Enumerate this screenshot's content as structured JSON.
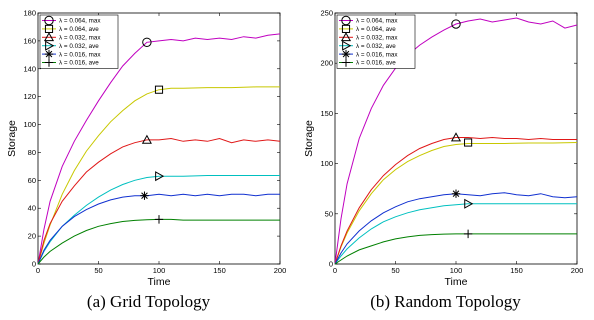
{
  "chart_data": [
    {
      "type": "line",
      "caption": "(a) Grid Topology",
      "xlabel": "Time",
      "ylabel": "Storage",
      "xlim": [
        0,
        200
      ],
      "ylim": [
        0,
        180
      ],
      "xticks": [
        0,
        50,
        100,
        150,
        200
      ],
      "yticks": [
        0,
        20,
        40,
        60,
        80,
        100,
        120,
        140,
        160,
        180
      ],
      "grid": false,
      "legend_position": "top-left",
      "series": [
        {
          "name": "λ = 0.064, max",
          "color": "#c000c0",
          "marker": "circle",
          "marker_at": [
            90,
            159
          ],
          "x": [
            0,
            5,
            10,
            20,
            30,
            40,
            50,
            60,
            70,
            80,
            90,
            100,
            110,
            120,
            130,
            140,
            150,
            160,
            170,
            180,
            190,
            200
          ],
          "y": [
            0,
            25,
            45,
            70,
            88,
            103,
            117,
            130,
            142,
            151,
            159,
            160,
            161,
            160,
            162,
            161,
            162,
            161,
            163,
            162,
            164,
            165
          ]
        },
        {
          "name": "λ = 0.064, ave",
          "color": "#c8c800",
          "marker": "square",
          "marker_at": [
            100,
            125
          ],
          "x": [
            0,
            5,
            10,
            20,
            30,
            40,
            50,
            60,
            70,
            80,
            90,
            100,
            110,
            120,
            140,
            160,
            180,
            200
          ],
          "y": [
            0,
            15,
            28,
            50,
            67,
            81,
            92,
            102,
            110,
            117,
            122,
            125,
            126,
            126,
            126.5,
            126.5,
            127,
            127
          ]
        },
        {
          "name": "λ = 0.032, max",
          "color": "#e01818",
          "marker": "triangle-up",
          "marker_at": [
            90,
            89
          ],
          "x": [
            0,
            5,
            10,
            20,
            30,
            40,
            50,
            60,
            70,
            80,
            90,
            100,
            110,
            120,
            130,
            140,
            150,
            160,
            170,
            180,
            190,
            200
          ],
          "y": [
            0,
            17,
            29,
            45,
            56,
            66,
            73,
            79,
            84,
            87,
            89,
            89,
            90,
            88,
            89,
            88,
            90,
            87,
            89,
            88,
            89,
            88
          ]
        },
        {
          "name": "λ = 0.032, ave",
          "color": "#00c0c0",
          "marker": "triangle-right",
          "marker_at": [
            100,
            63
          ],
          "x": [
            0,
            5,
            10,
            20,
            30,
            40,
            50,
            60,
            70,
            80,
            90,
            100,
            110,
            120,
            140,
            160,
            180,
            200
          ],
          "y": [
            0,
            9,
            16,
            27,
            35,
            42,
            48,
            53,
            57,
            60,
            62,
            63,
            63,
            63,
            63.5,
            63.5,
            63.5,
            63.5
          ]
        },
        {
          "name": "λ = 0.016, max",
          "color": "#1030d0",
          "marker": "asterisk",
          "marker_at": [
            88,
            49
          ],
          "x": [
            0,
            5,
            10,
            20,
            30,
            40,
            50,
            60,
            70,
            80,
            90,
            100,
            110,
            120,
            130,
            140,
            150,
            160,
            170,
            180,
            190,
            200
          ],
          "y": [
            0,
            10,
            17,
            27,
            34,
            39,
            43,
            46,
            48,
            49,
            49,
            50,
            49,
            50,
            49,
            50,
            49,
            50,
            50,
            49,
            50,
            50
          ]
        },
        {
          "name": "λ = 0.016, ave",
          "color": "#008000",
          "marker": "plus",
          "marker_at": [
            100,
            32
          ],
          "x": [
            0,
            5,
            10,
            20,
            30,
            40,
            50,
            60,
            70,
            80,
            90,
            100,
            110,
            120,
            140,
            160,
            180,
            200
          ],
          "y": [
            0,
            5,
            9,
            15,
            20,
            24,
            27,
            29,
            30.5,
            31.3,
            31.8,
            32,
            32,
            31.5,
            31.5,
            31.5,
            31.5,
            31.5
          ]
        }
      ]
    },
    {
      "type": "line",
      "caption": "(b) Random Topology",
      "xlabel": "Time",
      "ylabel": "Storage",
      "xlim": [
        0,
        200
      ],
      "ylim": [
        0,
        250
      ],
      "xticks": [
        0,
        50,
        100,
        150,
        200
      ],
      "yticks": [
        0,
        50,
        100,
        150,
        200,
        250
      ],
      "grid": false,
      "legend_position": "top-left",
      "series": [
        {
          "name": "λ = 0.064, max",
          "color": "#c000c0",
          "marker": "circle",
          "marker_at": [
            100,
            239
          ],
          "x": [
            0,
            5,
            10,
            20,
            30,
            40,
            50,
            60,
            70,
            80,
            90,
            100,
            110,
            120,
            130,
            140,
            150,
            160,
            170,
            180,
            190,
            200
          ],
          "y": [
            0,
            45,
            80,
            125,
            155,
            178,
            195,
            208,
            218,
            226,
            233,
            239,
            242,
            244,
            241,
            243,
            245,
            241,
            239,
            242,
            235,
            238
          ]
        },
        {
          "name": "λ = 0.064, ave",
          "color": "#c8c800",
          "marker": "none",
          "marker_at": null,
          "x": [
            0,
            5,
            10,
            20,
            30,
            40,
            50,
            60,
            70,
            80,
            90,
            100,
            110,
            120,
            140,
            160,
            180,
            200
          ],
          "y": [
            0,
            17,
            31,
            53,
            70,
            84,
            94,
            102,
            108,
            113,
            117,
            119,
            120,
            120,
            120,
            120.5,
            120.5,
            121
          ]
        },
        {
          "name": "λ = 0.032, max",
          "color": "#e01818",
          "marker": "triangle-up",
          "marker_at": [
            100,
            126
          ],
          "x": [
            0,
            5,
            10,
            20,
            30,
            40,
            50,
            60,
            70,
            80,
            90,
            100,
            110,
            120,
            130,
            140,
            150,
            160,
            170,
            180,
            190,
            200
          ],
          "y": [
            0,
            18,
            33,
            56,
            74,
            88,
            99,
            108,
            115,
            120,
            124,
            126,
            126,
            125,
            126,
            125,
            125,
            124,
            125,
            124,
            124,
            124
          ]
        },
        {
          "name": "λ = 0.032, ave",
          "color": "#00c0c0",
          "marker": "triangle-right",
          "marker_at": [
            110,
            60
          ],
          "x": [
            0,
            5,
            10,
            20,
            30,
            40,
            50,
            60,
            70,
            80,
            90,
            100,
            110,
            120,
            140,
            160,
            180,
            200
          ],
          "y": [
            0,
            8,
            15,
            26,
            35,
            42,
            47,
            51,
            54,
            56,
            58,
            59,
            60,
            60,
            60,
            60,
            60,
            60
          ]
        },
        {
          "name": "λ = 0.016, max",
          "color": "#1030d0",
          "marker": "asterisk",
          "marker_at": [
            100,
            70
          ],
          "x": [
            0,
            5,
            10,
            20,
            30,
            40,
            50,
            60,
            70,
            80,
            90,
            100,
            110,
            120,
            130,
            140,
            150,
            160,
            170,
            180,
            190,
            200
          ],
          "y": [
            0,
            11,
            20,
            33,
            43,
            51,
            57,
            62,
            65,
            67,
            69,
            70,
            69,
            68,
            70,
            71,
            69,
            68,
            70,
            67,
            66,
            67
          ]
        },
        {
          "name": "λ = 0.016, ave",
          "color": "#008000",
          "marker": "plus",
          "marker_at": [
            110,
            30
          ],
          "x": [
            0,
            5,
            10,
            20,
            30,
            40,
            50,
            60,
            70,
            80,
            90,
            100,
            110,
            120,
            140,
            160,
            180,
            200
          ],
          "y": [
            0,
            4,
            8,
            14,
            18,
            22,
            25,
            27,
            28.5,
            29.3,
            29.8,
            30,
            30,
            30,
            30,
            30,
            30,
            30
          ]
        },
        {
          "name": "",
          "color": "#000000",
          "marker": "square",
          "marker_at": [
            110,
            121
          ],
          "x": [],
          "y": []
        }
      ]
    }
  ]
}
